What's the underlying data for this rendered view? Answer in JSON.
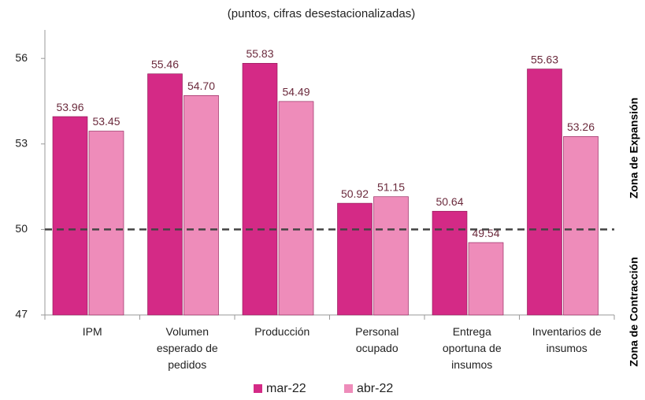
{
  "chart_data": {
    "type": "bar",
    "subtitle": "(puntos, cifras desestacionalizadas)",
    "categories": [
      "IPM",
      "Volumen esperado de pedidos",
      "Producción",
      "Personal ocupado",
      "Entrega oportuna de insumos",
      "Inventarios de insumos"
    ],
    "series": [
      {
        "name": "mar-22",
        "color": "#d42a86",
        "values": [
          53.96,
          55.46,
          55.83,
          50.92,
          50.64,
          55.63
        ],
        "value_labels": [
          "53.96",
          "55.46",
          "55.83",
          "50.92",
          "50.64",
          "55.63"
        ]
      },
      {
        "name": "abr-22",
        "color": "#ee8cba",
        "values": [
          53.45,
          54.7,
          54.49,
          51.15,
          49.54,
          53.26
        ],
        "value_labels": [
          "53.45",
          "54.70",
          "54.49",
          "51.15",
          "49.54",
          "53.26"
        ]
      }
    ],
    "ylim": [
      47,
      57
    ],
    "yticks": [
      47,
      50,
      53,
      56
    ],
    "reference_line": 50,
    "annotations": [
      "Zona de Contracción",
      "Zona de Expansión"
    ],
    "legend": "bottom",
    "grid": false
  }
}
